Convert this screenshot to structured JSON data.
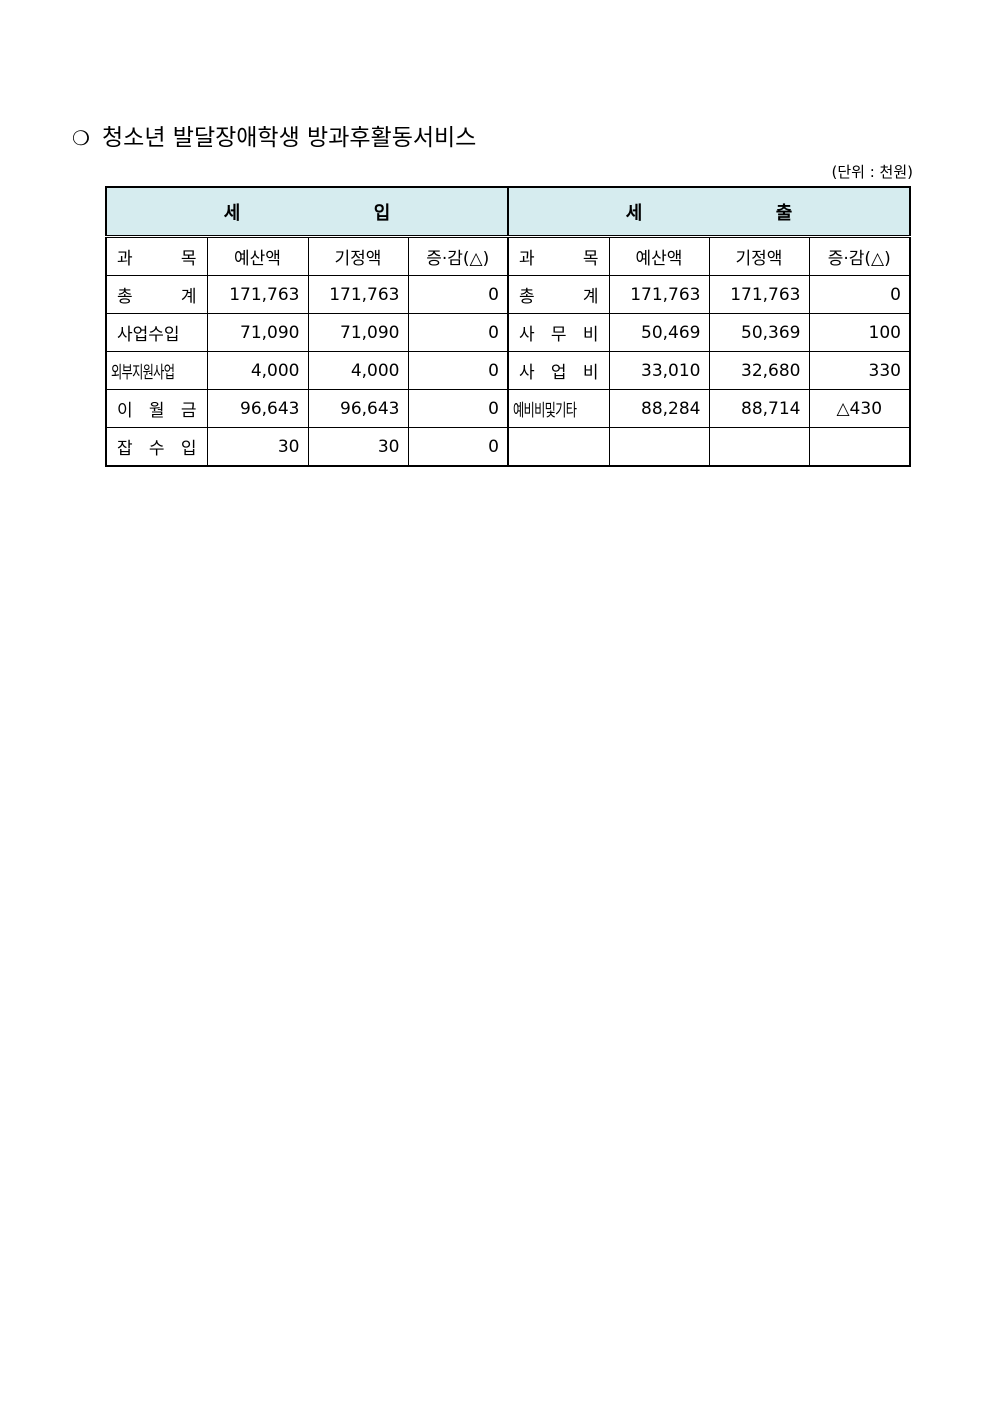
{
  "title": {
    "bullet": "❍",
    "text": "청소년 발달장애학생 방과후활동서비스"
  },
  "unit": "(단위 : 천원)",
  "table": {
    "revenue_header": [
      "세",
      "입"
    ],
    "expense_header": [
      "세",
      "출"
    ],
    "columns": [
      "과 목",
      "예산액",
      "기정액",
      "증·감(△)"
    ],
    "revenue_rows": [
      {
        "item": "총 계",
        "budget": "171,763",
        "prior": "171,763",
        "change": "0"
      },
      {
        "item": "사업수입",
        "budget": "71,090",
        "prior": "71,090",
        "change": "0"
      },
      {
        "item": "외부지원사업",
        "budget": "4,000",
        "prior": "4,000",
        "change": "0"
      },
      {
        "item": "이 월 금",
        "budget": "96,643",
        "prior": "96,643",
        "change": "0"
      },
      {
        "item": "잡 수 입",
        "budget": "30",
        "prior": "30",
        "change": "0"
      }
    ],
    "expense_rows": [
      {
        "item": "총 계",
        "budget": "171,763",
        "prior": "171,763",
        "change": "0"
      },
      {
        "item": "사 무 비",
        "budget": "50,469",
        "prior": "50,369",
        "change": "100"
      },
      {
        "item": "사 업 비",
        "budget": "33,010",
        "prior": "32,680",
        "change": "330"
      },
      {
        "item": "예비비및기타",
        "budget": "88,284",
        "prior": "88,714",
        "change": "△430"
      },
      {
        "item": "",
        "budget": "",
        "prior": "",
        "change": ""
      }
    ],
    "header_bg": "#d6ecef"
  }
}
